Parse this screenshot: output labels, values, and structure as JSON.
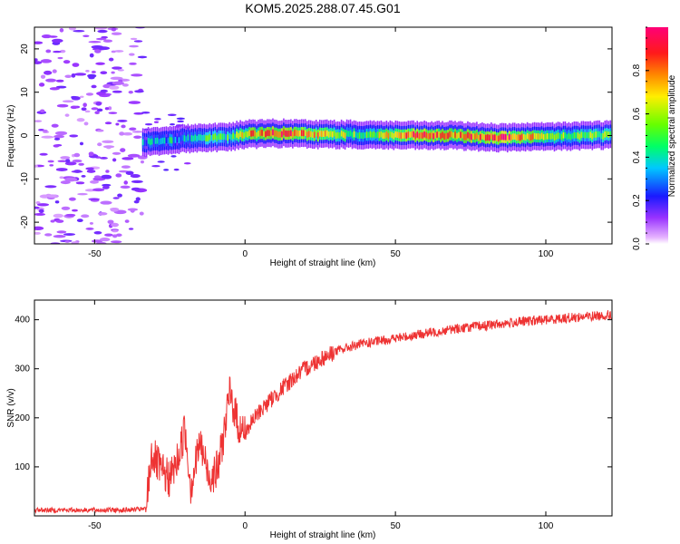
{
  "title": "KOM5.2025.288.07.45.G01",
  "spectrogram": {
    "type": "heatmap",
    "xlabel": "Height of straight line (km)",
    "ylabel": "Frequency (Hz)",
    "xlim": [
      -70,
      122
    ],
    "ylim": [
      -25,
      25
    ],
    "xticks": [
      -50,
      0,
      50,
      100
    ],
    "yticks": [
      -20,
      -10,
      0,
      10,
      20
    ],
    "xtick_labels": [
      "-50",
      "0",
      "50",
      "100"
    ],
    "ytick_labels": [
      "-20",
      "-10",
      "0",
      "10",
      "20"
    ],
    "signal_band": [
      {
        "x": -34,
        "freq": -1.5,
        "amp": 0.3
      },
      {
        "x": -25,
        "freq": -1.0,
        "amp": 0.35
      },
      {
        "x": -15,
        "freq": -0.5,
        "amp": 0.4
      },
      {
        "x": -5,
        "freq": -0.3,
        "amp": 0.45
      },
      {
        "x": 0,
        "freq": 0.3,
        "amp": 0.7
      },
      {
        "x": 10,
        "freq": 0.5,
        "amp": 0.9
      },
      {
        "x": 25,
        "freq": 0.3,
        "amp": 0.7
      },
      {
        "x": 40,
        "freq": 0.2,
        "amp": 0.5
      },
      {
        "x": 55,
        "freq": 0.0,
        "amp": 0.85
      },
      {
        "x": 70,
        "freq": 0.0,
        "amp": 0.8
      },
      {
        "x": 85,
        "freq": -0.5,
        "amp": 0.9
      },
      {
        "x": 100,
        "freq": -0.3,
        "amp": 0.6
      },
      {
        "x": 122,
        "freq": 0.2,
        "amp": 0.5
      }
    ]
  },
  "colorbar": {
    "label": "Normalized spectral amplitude",
    "ticks": [
      0.0,
      0.2,
      0.4,
      0.6,
      0.8
    ],
    "tick_labels": [
      "0.0",
      "0.2",
      "0.4",
      "0.6",
      "0.8"
    ],
    "range": [
      0,
      1
    ]
  },
  "chart_data": {
    "type": "line",
    "title": "KOM5.2025.288.07.45.G01",
    "xlabel": "Height of straight line (km)",
    "ylabel": "SNR (v/v)",
    "xlim": [
      -70,
      122
    ],
    "ylim": [
      0,
      440
    ],
    "xticks": [
      -50,
      0,
      50,
      100
    ],
    "yticks": [
      100,
      200,
      300,
      400
    ],
    "xtick_labels": [
      "-50",
      "0",
      "50",
      "100"
    ],
    "ytick_labels": [
      "100",
      "200",
      "300",
      "400"
    ],
    "line_color": "#ee3333",
    "x": [
      -70,
      -60,
      -50,
      -40,
      -33,
      -31,
      -28,
      -25,
      -22,
      -20,
      -18,
      -15,
      -12,
      -9,
      -7,
      -5,
      -2,
      0,
      5,
      10,
      15,
      20,
      25,
      30,
      35,
      40,
      50,
      60,
      70,
      80,
      90,
      100,
      110,
      122
    ],
    "y": [
      12,
      12,
      12,
      12,
      14,
      130,
      90,
      75,
      120,
      180,
      60,
      150,
      80,
      95,
      170,
      250,
      180,
      170,
      215,
      245,
      275,
      300,
      320,
      335,
      345,
      352,
      362,
      372,
      382,
      388,
      395,
      400,
      405,
      410
    ]
  }
}
